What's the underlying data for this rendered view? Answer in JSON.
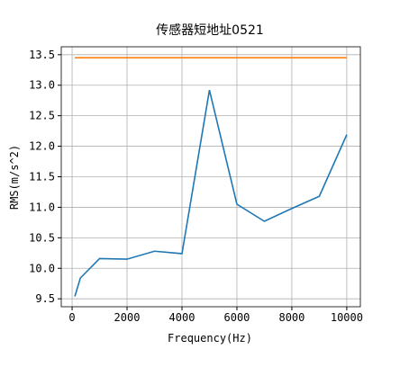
{
  "chart_data": {
    "type": "line",
    "title": "传感器短地址0521",
    "xlabel": "Frequency(Hz)",
    "ylabel": "RMS(m/s^2)",
    "x": [
      100,
      300,
      1000,
      2000,
      3000,
      4000,
      5000,
      6000,
      7000,
      8000,
      9000,
      10000
    ],
    "series": [
      {
        "name": null,
        "color": "#1f77b4",
        "values": [
          9.54,
          9.84,
          10.16,
          10.15,
          10.28,
          10.24,
          12.92,
          11.05,
          10.77,
          10.98,
          11.18,
          12.19
        ]
      },
      {
        "name": null,
        "color": "#ff7f0e",
        "values": [
          13.45,
          13.45,
          13.45,
          13.45,
          13.45,
          13.45,
          13.45,
          13.45,
          13.45,
          13.45,
          13.45,
          13.45
        ]
      }
    ],
    "xlim": [
      -395,
      10495
    ],
    "xticks": [
      0,
      2000,
      4000,
      6000,
      8000,
      10000
    ],
    "ylim": [
      9.37,
      13.63
    ],
    "yticks": [
      9.5,
      {
        "value": 10,
        "label": "10.0"
      },
      10.5,
      {
        "value": 11,
        "label": "11.0"
      },
      11.5,
      {
        "value": 12,
        "label": "12.0"
      },
      12.5,
      {
        "value": 13,
        "label": "13.0"
      },
      13.5
    ],
    "grid": true
  }
}
